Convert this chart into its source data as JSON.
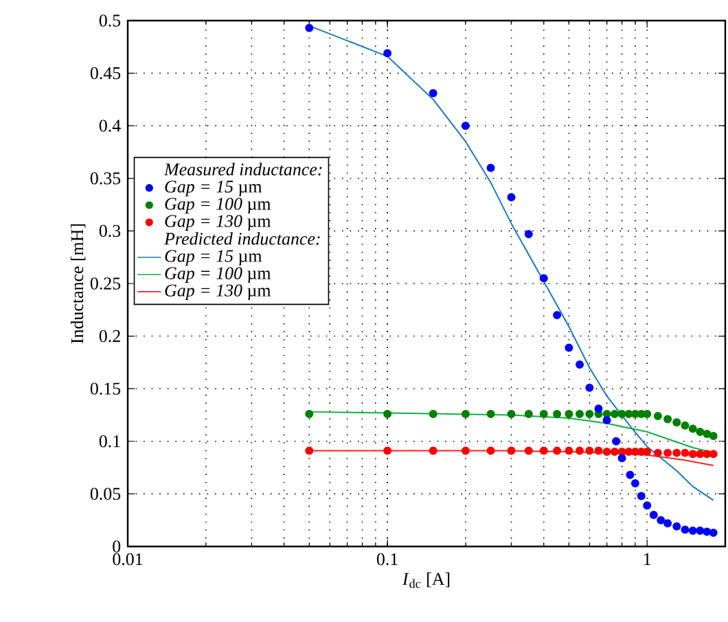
{
  "chart_data": {
    "type": "scatter",
    "xlabel": "*I*$_{dc}$ [A]",
    "ylabel": "Inductance [mH]",
    "legend_title": "Measured inductance:",
    "annotations": [
      "Predicted inductance:"
    ],
    "log": "x",
    "grid": true,
    "legend": "left",
    "xlim": [
      0.01,
      2
    ],
    "xticks": [
      0.01,
      0.1,
      1
    ],
    "ylim": [
      0,
      0.5
    ],
    "yticks": [
      0,
      0.05,
      0.1,
      0.15,
      0.2,
      0.25,
      0.3,
      0.35,
      0.4,
      0.45,
      0.5
    ],
    "series": [
      {
        "name": "*Gap = 15* µm",
        "marker": "circle",
        "color": "#0000ff",
        "x": [
          0.05,
          0.1,
          0.15,
          0.2,
          0.25,
          0.3,
          0.35,
          0.4,
          0.45,
          0.5,
          0.55,
          0.6,
          0.65,
          0.7,
          0.76,
          0.8,
          0.86,
          0.9,
          0.95,
          1.0,
          1.06,
          1.13,
          1.2,
          1.3,
          1.4,
          1.5,
          1.6,
          1.7,
          1.8
        ],
        "values": [
          0.493,
          0.469,
          0.431,
          0.4,
          0.36,
          0.332,
          0.297,
          0.255,
          0.22,
          0.189,
          0.173,
          0.151,
          0.131,
          0.12,
          0.1,
          0.084,
          0.068,
          0.06,
          0.048,
          0.039,
          0.03,
          0.025,
          0.022,
          0.019,
          0.016,
          0.015,
          0.015,
          0.014,
          0.013
        ]
      },
      {
        "name": "*Gap = 100* µm",
        "marker": "circle",
        "color": "#008000",
        "x": [
          0.05,
          0.1,
          0.15,
          0.2,
          0.25,
          0.3,
          0.35,
          0.4,
          0.45,
          0.5,
          0.55,
          0.6,
          0.65,
          0.7,
          0.75,
          0.8,
          0.85,
          0.9,
          0.95,
          1.0,
          1.1,
          1.2,
          1.3,
          1.4,
          1.5,
          1.6,
          1.7,
          1.8
        ],
        "values": [
          0.126,
          0.126,
          0.126,
          0.126,
          0.126,
          0.126,
          0.126,
          0.126,
          0.126,
          0.126,
          0.126,
          0.126,
          0.126,
          0.126,
          0.126,
          0.126,
          0.126,
          0.126,
          0.126,
          0.126,
          0.124,
          0.121,
          0.118,
          0.115,
          0.112,
          0.109,
          0.107,
          0.105
        ]
      },
      {
        "name": "*Gap = 130* µm",
        "marker": "circle",
        "color": "#ff0000",
        "x": [
          0.05,
          0.1,
          0.15,
          0.2,
          0.25,
          0.3,
          0.35,
          0.4,
          0.45,
          0.5,
          0.55,
          0.6,
          0.65,
          0.7,
          0.75,
          0.8,
          0.85,
          0.9,
          0.95,
          1.0,
          1.1,
          1.2,
          1.3,
          1.4,
          1.5,
          1.6,
          1.7,
          1.8
        ],
        "values": [
          0.091,
          0.091,
          0.091,
          0.091,
          0.091,
          0.091,
          0.091,
          0.091,
          0.091,
          0.091,
          0.091,
          0.091,
          0.091,
          0.09,
          0.09,
          0.09,
          0.09,
          0.09,
          0.09,
          0.09,
          0.089,
          0.089,
          0.089,
          0.089,
          0.088,
          0.088,
          0.088,
          0.088
        ]
      },
      {
        "type": "line",
        "marker": "none",
        "name": "*Gap = 15* µm",
        "color": "#1878c8",
        "x": [
          0.05,
          0.1,
          0.15,
          0.2,
          0.25,
          0.3,
          0.4,
          0.5,
          0.6,
          0.7,
          0.87,
          1.0,
          1.3,
          1.5,
          1.8
        ],
        "values": [
          0.495,
          0.466,
          0.425,
          0.385,
          0.346,
          0.307,
          0.252,
          0.209,
          0.17,
          0.143,
          0.113,
          0.095,
          0.072,
          0.057,
          0.044
        ]
      },
      {
        "type": "line",
        "marker": "none",
        "name": "*Gap = 100* µm",
        "color": "#10b040",
        "x": [
          0.05,
          0.1,
          0.3,
          0.5,
          0.7,
          1.0,
          1.5,
          1.8
        ],
        "values": [
          0.128,
          0.127,
          0.125,
          0.122,
          0.117,
          0.109,
          0.094,
          0.089
        ]
      },
      {
        "type": "line",
        "marker": "none",
        "name": "*Gap = 130* µm",
        "color": "#ff2020",
        "x": [
          0.05,
          0.1,
          0.3,
          0.5,
          0.7,
          1.0,
          1.4,
          1.8
        ],
        "values": [
          0.091,
          0.091,
          0.091,
          0.09,
          0.089,
          0.087,
          0.082,
          0.077
        ]
      }
    ]
  }
}
